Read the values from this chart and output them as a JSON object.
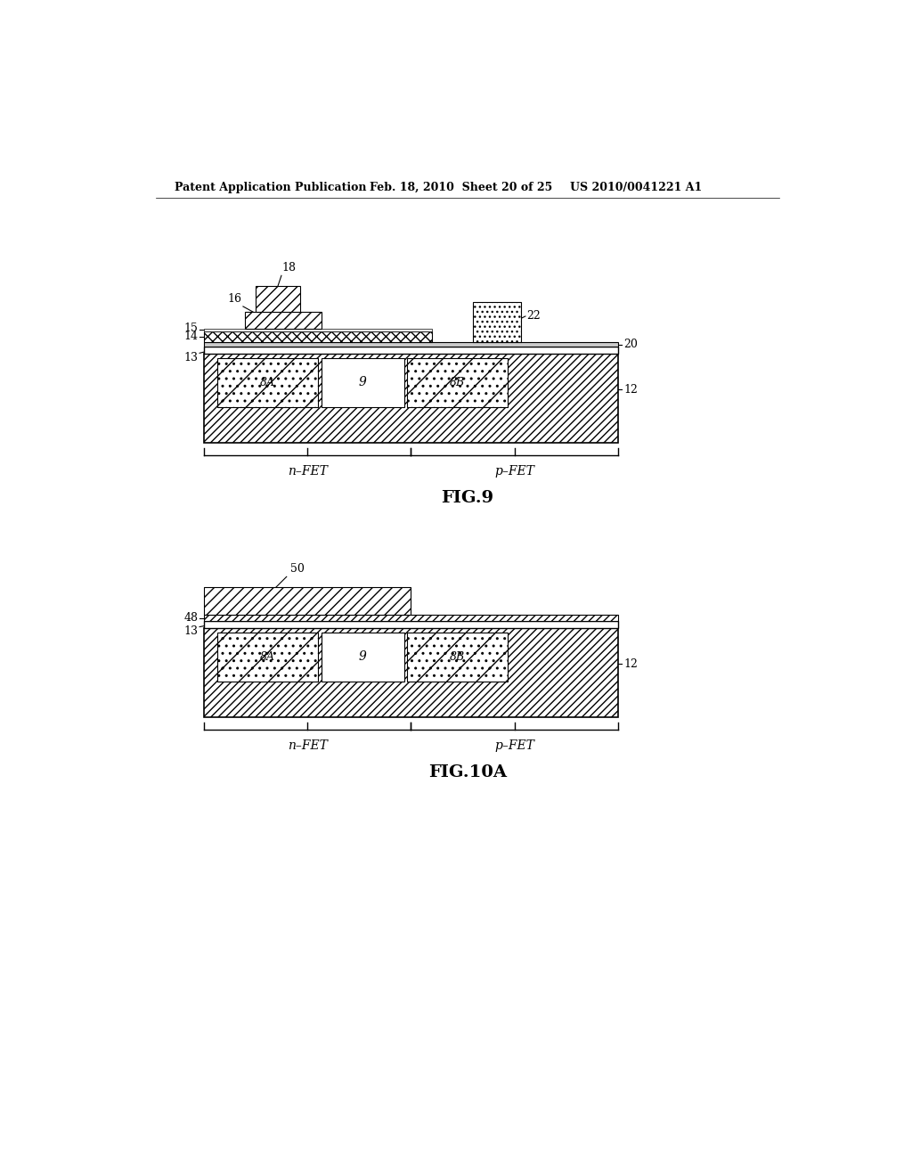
{
  "bg_color": "#ffffff",
  "header_left": "Patent Application Publication",
  "header_mid": "Feb. 18, 2010  Sheet 20 of 25",
  "header_right": "US 2010/0041221 A1",
  "fig9_label": "FIG.9",
  "fig10a_label": "FIG.10A"
}
